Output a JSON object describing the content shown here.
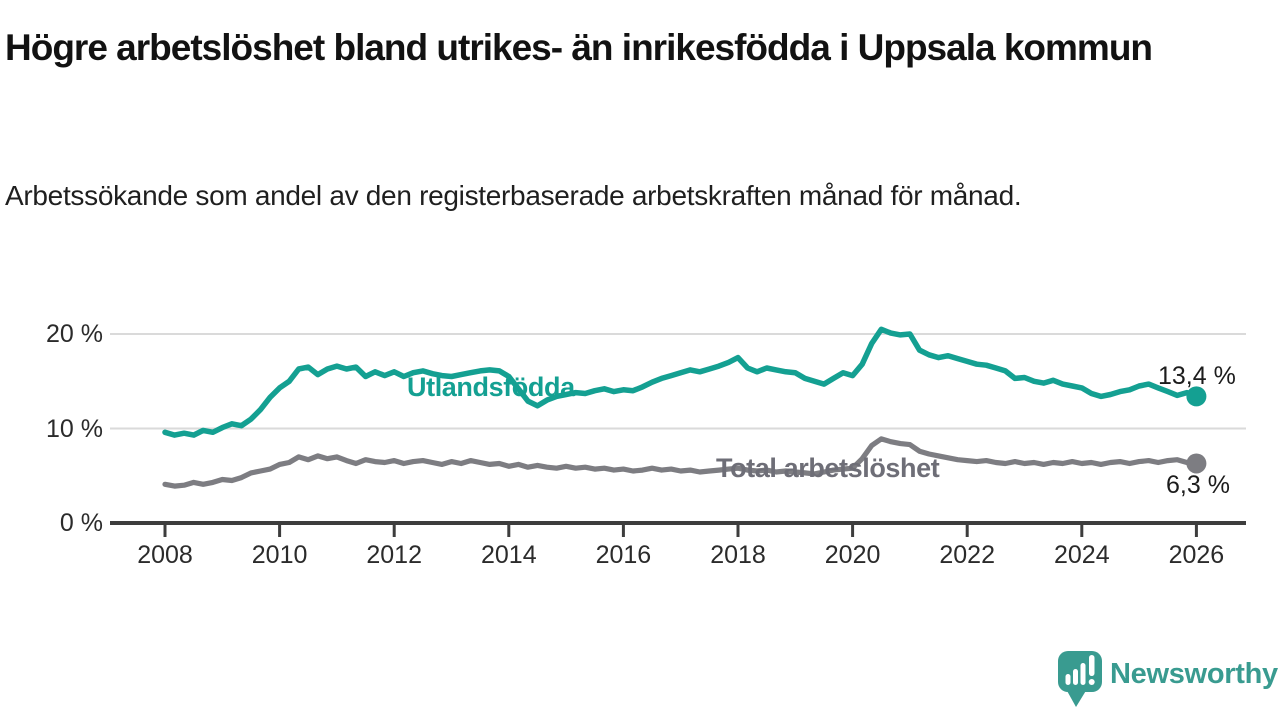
{
  "header": {
    "title": "Högre arbetslöshet bland utrikes- än inrikesfödda i Uppsala kommun",
    "subtitle": "Arbetssökande som andel av den registerbaserade arbetskraften månad för månad."
  },
  "chart_data": {
    "type": "line",
    "x_unit": "year",
    "x_start": 2008,
    "x_step": 0.1666667,
    "x_ticks": [
      "2008",
      "2010",
      "2012",
      "2014",
      "2016",
      "2018",
      "2020",
      "2022",
      "2024",
      "2026"
    ],
    "y_ticks": [
      {
        "label": "20 %",
        "value": 20
      },
      {
        "label": "10 %",
        "value": 10
      },
      {
        "label": "0 %",
        "value": 0
      }
    ],
    "ylim": [
      0,
      22
    ],
    "grid": "horizontal",
    "legend": "inline-labels",
    "series": [
      {
        "name": "Utlandsfödda",
        "color": "#14a092",
        "end_label": "13,4 %",
        "end_value": 13.4,
        "values": [
          9.6,
          9.3,
          9.5,
          9.3,
          9.8,
          9.6,
          10.1,
          10.5,
          10.3,
          11.0,
          12.0,
          13.3,
          14.3,
          15.0,
          16.3,
          16.5,
          15.7,
          16.3,
          16.6,
          16.3,
          16.5,
          15.5,
          16.0,
          15.6,
          16.0,
          15.5,
          15.9,
          16.1,
          15.8,
          15.6,
          15.5,
          15.7,
          15.9,
          16.1,
          16.2,
          16.1,
          15.5,
          14.2,
          12.9,
          12.4,
          13.0,
          13.4,
          13.6,
          13.8,
          13.7,
          14.0,
          14.2,
          13.9,
          14.1,
          14.0,
          14.4,
          14.9,
          15.3,
          15.6,
          15.9,
          16.2,
          16.0,
          16.3,
          16.6,
          17.0,
          17.5,
          16.4,
          16.0,
          16.4,
          16.2,
          16.0,
          15.9,
          15.3,
          15.0,
          14.7,
          15.3,
          15.9,
          15.6,
          16.8,
          19.0,
          20.5,
          20.1,
          19.9,
          20.0,
          18.3,
          17.8,
          17.5,
          17.7,
          17.4,
          17.1,
          16.8,
          16.7,
          16.4,
          16.1,
          15.3,
          15.4,
          15.0,
          14.8,
          15.1,
          14.7,
          14.5,
          14.3,
          13.7,
          13.4,
          13.6,
          13.9,
          14.1,
          14.5,
          14.7,
          14.3,
          13.9,
          13.5,
          13.8,
          13.4
        ]
      },
      {
        "name": "Total arbetslöshet",
        "color": "#7d7d82",
        "end_label": "6,3 %",
        "end_value": 6.3,
        "values": [
          4.1,
          3.9,
          4.0,
          4.3,
          4.1,
          4.3,
          4.6,
          4.5,
          4.8,
          5.3,
          5.5,
          5.7,
          6.2,
          6.4,
          7.0,
          6.7,
          7.1,
          6.8,
          7.0,
          6.6,
          6.3,
          6.7,
          6.5,
          6.4,
          6.6,
          6.3,
          6.5,
          6.6,
          6.4,
          6.2,
          6.5,
          6.3,
          6.6,
          6.4,
          6.2,
          6.3,
          6.0,
          6.2,
          5.9,
          6.1,
          5.9,
          5.8,
          6.0,
          5.8,
          5.9,
          5.7,
          5.8,
          5.6,
          5.7,
          5.5,
          5.6,
          5.8,
          5.6,
          5.7,
          5.5,
          5.6,
          5.4,
          5.5,
          5.6,
          5.7,
          5.8,
          5.6,
          5.5,
          5.6,
          5.4,
          5.5,
          5.4,
          5.3,
          5.2,
          5.4,
          5.6,
          5.7,
          5.8,
          6.8,
          8.2,
          8.9,
          8.6,
          8.4,
          8.3,
          7.6,
          7.3,
          7.1,
          6.9,
          6.7,
          6.6,
          6.5,
          6.6,
          6.4,
          6.3,
          6.5,
          6.3,
          6.4,
          6.2,
          6.4,
          6.3,
          6.5,
          6.3,
          6.4,
          6.2,
          6.4,
          6.5,
          6.3,
          6.5,
          6.6,
          6.4,
          6.6,
          6.7,
          6.4,
          6.3
        ]
      }
    ],
    "title": "Högre arbetslöshet bland utrikes- än inrikesfödda i Uppsala kommun",
    "xlabel": "",
    "ylabel": ""
  },
  "colors": {
    "accent_teal": "#14a092",
    "series_gray": "#7d7d82",
    "grid_line": "#dadada",
    "axis_line": "#3d3d3d",
    "tick_text": "#2b2b2b"
  },
  "branding": {
    "name": "Newsworthy",
    "color": "#399b90",
    "icon": "bar-chart-speech-bubble-icon"
  }
}
